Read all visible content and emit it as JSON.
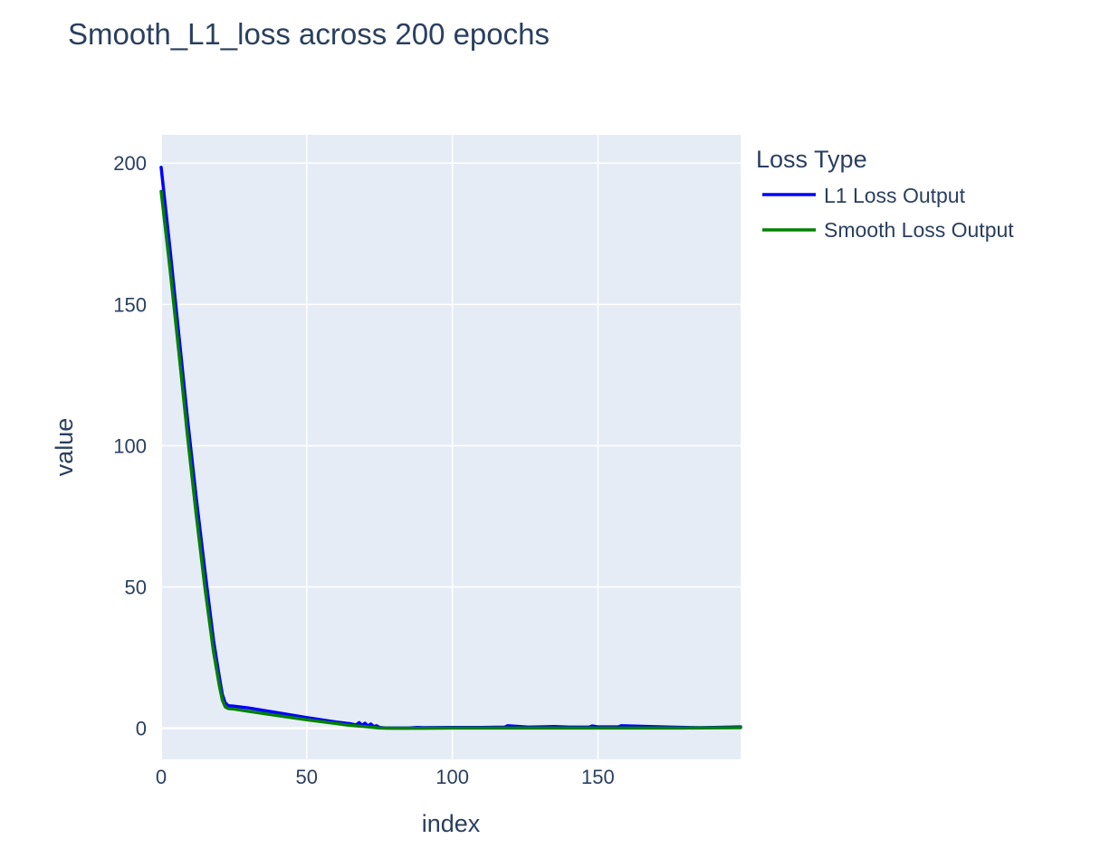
{
  "chart_data": {
    "type": "line",
    "title": "Smooth_L1_loss across 200 epochs",
    "xlabel": "index",
    "ylabel": "value",
    "xlim": [
      0,
      199
    ],
    "ylim": [
      -11,
      210
    ],
    "x_ticks": [
      0,
      50,
      100,
      150
    ],
    "y_ticks": [
      0,
      50,
      100,
      150,
      200
    ],
    "grid": true,
    "legend": {
      "title": "Loss Type",
      "placement": "right"
    },
    "colors": {
      "plot_background": "#e5ecf6",
      "grid": "#ffffff",
      "text": "#2a3f5f"
    },
    "series": [
      {
        "name": "L1 Loss Output",
        "color": "#0000ff",
        "points": [
          [
            0,
            198.5
          ],
          [
            3,
            170
          ],
          [
            6,
            140
          ],
          [
            9,
            110
          ],
          [
            12,
            82
          ],
          [
            15,
            56
          ],
          [
            18,
            31
          ],
          [
            20,
            18
          ],
          [
            21,
            12
          ],
          [
            22,
            9
          ],
          [
            23,
            8
          ],
          [
            25,
            7.8
          ],
          [
            30,
            7.2
          ],
          [
            40,
            5.5
          ],
          [
            50,
            3.8
          ],
          [
            60,
            2.2
          ],
          [
            65,
            1.6
          ],
          [
            67,
            1.2
          ],
          [
            68,
            2.0
          ],
          [
            69,
            1.0
          ],
          [
            70,
            1.8
          ],
          [
            71,
            0.8
          ],
          [
            72,
            1.5
          ],
          [
            73,
            0.6
          ],
          [
            74,
            0.9
          ],
          [
            75,
            0.3
          ],
          [
            77,
            0.1
          ],
          [
            85,
            0.1
          ],
          [
            88,
            0.3
          ],
          [
            90,
            0.2
          ],
          [
            100,
            0.3
          ],
          [
            110,
            0.3
          ],
          [
            118,
            0.4
          ],
          [
            119,
            0.9
          ],
          [
            122,
            0.7
          ],
          [
            126,
            0.4
          ],
          [
            130,
            0.5
          ],
          [
            135,
            0.6
          ],
          [
            140,
            0.4
          ],
          [
            147,
            0.4
          ],
          [
            148,
            0.8
          ],
          [
            150,
            0.5
          ],
          [
            157,
            0.5
          ],
          [
            158,
            0.9
          ],
          [
            165,
            0.7
          ],
          [
            175,
            0.4
          ],
          [
            185,
            0.2
          ],
          [
            190,
            0.3
          ],
          [
            199,
            0.5
          ]
        ]
      },
      {
        "name": "Smooth Loss Output",
        "color": "#008000",
        "points": [
          [
            0,
            190
          ],
          [
            3,
            163
          ],
          [
            6,
            134
          ],
          [
            9,
            104
          ],
          [
            12,
            76
          ],
          [
            15,
            50
          ],
          [
            18,
            27
          ],
          [
            20,
            15
          ],
          [
            21,
            10
          ],
          [
            22,
            7.6
          ],
          [
            23,
            7.0
          ],
          [
            25,
            6.8
          ],
          [
            30,
            6.0
          ],
          [
            40,
            4.5
          ],
          [
            50,
            3.0
          ],
          [
            60,
            1.7
          ],
          [
            65,
            1.0
          ],
          [
            70,
            0.6
          ],
          [
            73,
            0.3
          ],
          [
            75,
            0.1
          ],
          [
            80,
            0.0
          ],
          [
            90,
            0.0
          ],
          [
            100,
            0.1
          ],
          [
            120,
            0.1
          ],
          [
            140,
            0.1
          ],
          [
            160,
            0.1
          ],
          [
            180,
            0.1
          ],
          [
            199,
            0.2
          ]
        ]
      }
    ]
  }
}
